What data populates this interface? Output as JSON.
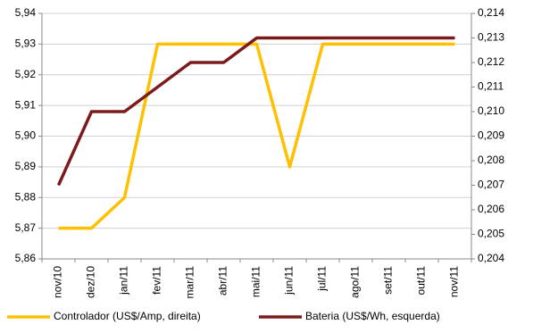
{
  "chart_data": {
    "type": "line",
    "categories": [
      "nov/10",
      "dez/10",
      "jan/11",
      "fev/11",
      "mar/11",
      "abr/11",
      "mai/11",
      "jun/11",
      "jul/11",
      "ago/11",
      "set/11",
      "out/11",
      "nov/11"
    ],
    "series": [
      {
        "name": "Controlador (US$/Amp, direita)",
        "color": "#ffc000",
        "values": [
          5.87,
          5.87,
          5.88,
          5.93,
          5.93,
          5.93,
          5.93,
          5.89,
          5.93,
          5.93,
          5.93,
          5.93,
          5.93
        ]
      },
      {
        "name": "Bateria (US$/Wh, esquerda)",
        "color": "#7b1b1b",
        "axis": "y2",
        "values": [
          0.207,
          0.21,
          0.21,
          0.211,
          0.212,
          0.212,
          0.213,
          0.213,
          0.213,
          0.213,
          0.213,
          0.213,
          0.213
        ]
      }
    ],
    "ylim": [
      5.86,
      5.94
    ],
    "yticks": [
      {
        "value": 5.86,
        "label": "5,86"
      },
      {
        "value": 5.87,
        "label": "5,87"
      },
      {
        "value": 5.88,
        "label": "5,88"
      },
      {
        "value": 5.89,
        "label": "5,89"
      },
      {
        "value": 5.9,
        "label": "5,90"
      },
      {
        "value": 5.91,
        "label": "5,91"
      },
      {
        "value": 5.92,
        "label": "5,92"
      },
      {
        "value": 5.93,
        "label": "5,93"
      },
      {
        "value": 5.94,
        "label": "5,94"
      }
    ],
    "y2lim": [
      0.204,
      0.214
    ],
    "y2ticks": [
      {
        "value": 0.204,
        "label": "0,204"
      },
      {
        "value": 0.205,
        "label": "0,205"
      },
      {
        "value": 0.206,
        "label": "0,206"
      },
      {
        "value": 0.207,
        "label": "0,207"
      },
      {
        "value": 0.208,
        "label": "0,208"
      },
      {
        "value": 0.209,
        "label": "0,209"
      },
      {
        "value": 0.21,
        "label": "0,210"
      },
      {
        "value": 0.211,
        "label": "0,211"
      },
      {
        "value": 0.212,
        "label": "0,212"
      },
      {
        "value": 0.213,
        "label": "0,213"
      },
      {
        "value": 0.214,
        "label": "0,214"
      }
    ],
    "grid": true,
    "legend": "bottom"
  }
}
